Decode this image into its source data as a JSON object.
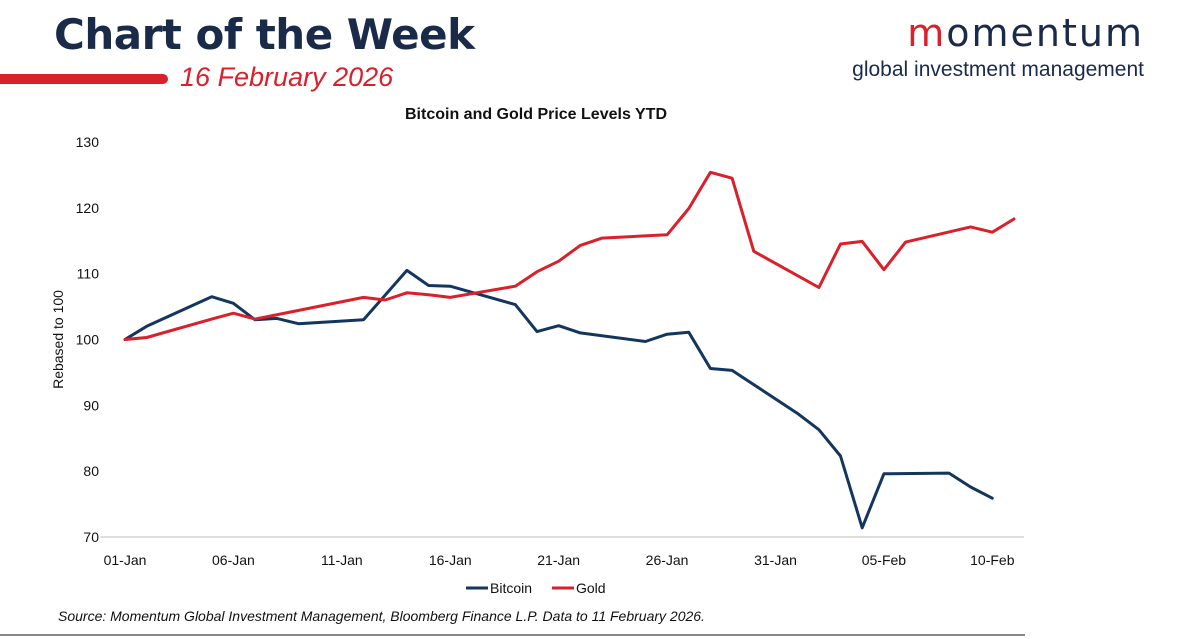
{
  "header": {
    "title": "Chart of the Week",
    "date": "16 February 2026"
  },
  "brand": {
    "name_first": "m",
    "name_rest": "omentum",
    "subtitle": "global investment management"
  },
  "colors": {
    "navy": "#1a2b4a",
    "red": "#d9202b",
    "bitcoin": "#14365e",
    "gold": "#d9202b"
  },
  "chart_data": {
    "type": "line",
    "title": "Bitcoin and Gold Price Levels YTD",
    "xlabel": "",
    "ylabel": "Rebased to 100",
    "ylim": [
      70,
      130
    ],
    "yticks": [
      70,
      80,
      90,
      100,
      110,
      120,
      130
    ],
    "xlim": [
      0,
      41
    ],
    "xticks": [
      {
        "x": 0,
        "label": "01-Jan"
      },
      {
        "x": 5,
        "label": "06-Jan"
      },
      {
        "x": 10,
        "label": "11-Jan"
      },
      {
        "x": 15,
        "label": "16-Jan"
      },
      {
        "x": 20,
        "label": "21-Jan"
      },
      {
        "x": 25,
        "label": "26-Jan"
      },
      {
        "x": 30,
        "label": "31-Jan"
      },
      {
        "x": 35,
        "label": "05-Feb"
      },
      {
        "x": 40,
        "label": "10-Feb"
      }
    ],
    "legend_position": "bottom",
    "series": [
      {
        "name": "Bitcoin",
        "color": "#14365e",
        "x": [
          0,
          1,
          4,
          5,
          6,
          7,
          8,
          11,
          13,
          14,
          15,
          18,
          19,
          20,
          21,
          24,
          25,
          26,
          27,
          28,
          31,
          32,
          33,
          34,
          35,
          38,
          39,
          40
        ],
        "y": [
          100,
          102,
          106.5,
          105.5,
          103,
          103.2,
          102.4,
          103,
          110.5,
          108.2,
          108.1,
          105.3,
          101.2,
          102.1,
          101,
          99.7,
          100.8,
          101.1,
          95.6,
          95.3,
          88.8,
          86.3,
          82.3,
          71.4,
          79.6,
          79.7,
          77.6,
          75.9
        ]
      },
      {
        "name": "Gold",
        "color": "#d9202b",
        "x": [
          0,
          1,
          4,
          5,
          6,
          11,
          12,
          13,
          14,
          15,
          18,
          19,
          20,
          21,
          22,
          25,
          26,
          27,
          28,
          29,
          32,
          33,
          34,
          35,
          36,
          39,
          40,
          41
        ],
        "y": [
          100,
          100.3,
          103.1,
          104,
          103.1,
          106.4,
          106,
          107.1,
          106.8,
          106.4,
          108.1,
          110.3,
          111.9,
          114.3,
          115.4,
          115.9,
          119.9,
          125.4,
          124.5,
          113.4,
          107.9,
          114.5,
          114.9,
          110.6,
          114.8,
          117.1,
          116.3,
          118.3
        ]
      }
    ]
  },
  "footer": {
    "source": "Source: Momentum Global Investment Management, Bloomberg Finance L.P. Data to 11 February 2026."
  }
}
